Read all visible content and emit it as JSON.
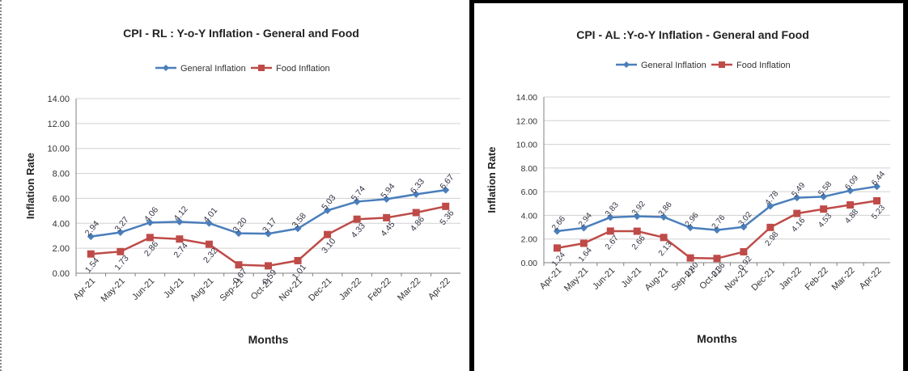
{
  "colors": {
    "general": "#4a7ebb",
    "food": "#be4b48",
    "grid": "#d0d0d0",
    "axis": "#808080"
  },
  "chart_data": [
    {
      "type": "line",
      "title": "CPI - RL : Y-o-Y Inflation - General and Food",
      "xlabel": "Months",
      "ylabel": "Inflation Rate",
      "ylim": [
        0,
        14
      ],
      "y_ticks": [
        "0.00",
        "2.00",
        "4.00",
        "6.00",
        "8.00",
        "10.00",
        "12.00",
        "14.00"
      ],
      "grid": true,
      "legend_position": "top",
      "categories": [
        "Apr-21",
        "May-21",
        "Jun-21",
        "Jul-21",
        "Aug-21",
        "Sep-21",
        "Oct-21",
        "Nov-21",
        "Dec-21",
        "Jan-22",
        "Feb-22",
        "Mar-22",
        "Apr-22"
      ],
      "series": [
        {
          "name": "General Inflation",
          "color": "#4a7ebb",
          "marker": "diamond",
          "values": [
            2.94,
            3.27,
            4.06,
            4.12,
            4.01,
            3.2,
            3.17,
            3.58,
            5.03,
            5.74,
            5.94,
            6.33,
            6.67
          ],
          "labels": [
            "2.94",
            "3.27",
            "4.06",
            "4.12",
            "4.01",
            "3.20",
            "3.17",
            "3.58",
            "5.03",
            "5.74",
            "5.94",
            "6.33",
            "6.67"
          ]
        },
        {
          "name": "Food Inflation",
          "color": "#be4b48",
          "marker": "square",
          "values": [
            1.54,
            1.73,
            2.86,
            2.74,
            2.32,
            0.67,
            0.59,
            1.01,
            3.1,
            4.33,
            4.45,
            4.86,
            5.36
          ],
          "labels": [
            "1.54",
            "1.73",
            "2.86",
            "2.74",
            "2.32",
            "0.67",
            "0.59",
            "1.01",
            "3.10",
            "4.33",
            "4.45",
            "4.86",
            "5.36"
          ]
        }
      ]
    },
    {
      "type": "line",
      "title": "CPI - AL :Y-o-Y Inflation - General and Food",
      "xlabel": "Months",
      "ylabel": "Inflation Rate",
      "ylim": [
        0,
        14
      ],
      "y_ticks": [
        "0.00",
        "2.00",
        "4.00",
        "6.00",
        "8.00",
        "10.00",
        "12.00",
        "14.00"
      ],
      "grid": true,
      "legend_position": "top",
      "categories": [
        "Apr-21",
        "May-21",
        "Jun-21",
        "Jul-21",
        "Aug-21",
        "Sep-21",
        "Oct-21",
        "Nov-21",
        "Dec-21",
        "Jan-22",
        "Feb-22",
        "Mar-22",
        "Apr-22"
      ],
      "series": [
        {
          "name": "General Inflation",
          "color": "#4a7ebb",
          "marker": "diamond",
          "values": [
            2.66,
            2.94,
            3.83,
            3.92,
            3.86,
            2.96,
            2.76,
            3.02,
            4.78,
            5.49,
            5.58,
            6.09,
            6.44
          ],
          "labels": [
            "2.66",
            "2.94",
            "3.83",
            "3.92",
            "3.86",
            "2.96",
            "2.76",
            "3.02",
            "4.78",
            "5.49",
            "5.58",
            "6.09",
            "6.44"
          ]
        },
        {
          "name": "Food Inflation",
          "color": "#be4b48",
          "marker": "square",
          "values": [
            1.24,
            1.64,
            2.67,
            2.66,
            2.13,
            0.4,
            0.36,
            0.92,
            2.98,
            4.16,
            4.53,
            4.88,
            5.23
          ],
          "labels": [
            "1.24",
            "1.64",
            "2.67",
            "2.66",
            "2.13",
            "0.40",
            "0.36",
            "0.92",
            "2.98",
            "4.16",
            "4.53",
            "4.88",
            "5.23"
          ]
        }
      ]
    }
  ]
}
